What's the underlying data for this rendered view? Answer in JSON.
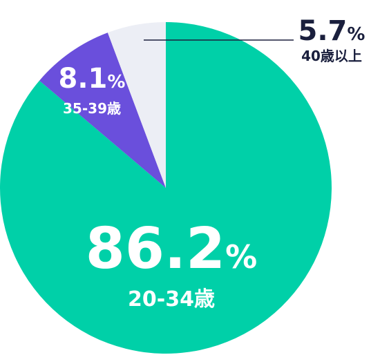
{
  "chart_data": {
    "type": "pie",
    "categories": [
      "20-34歳",
      "35-39歳",
      "40歳以上"
    ],
    "values": [
      86.2,
      8.1,
      5.7
    ],
    "unit": "%",
    "colors": [
      "#00d0a8",
      "#6a4fdc",
      "#eceef5"
    ]
  }
}
